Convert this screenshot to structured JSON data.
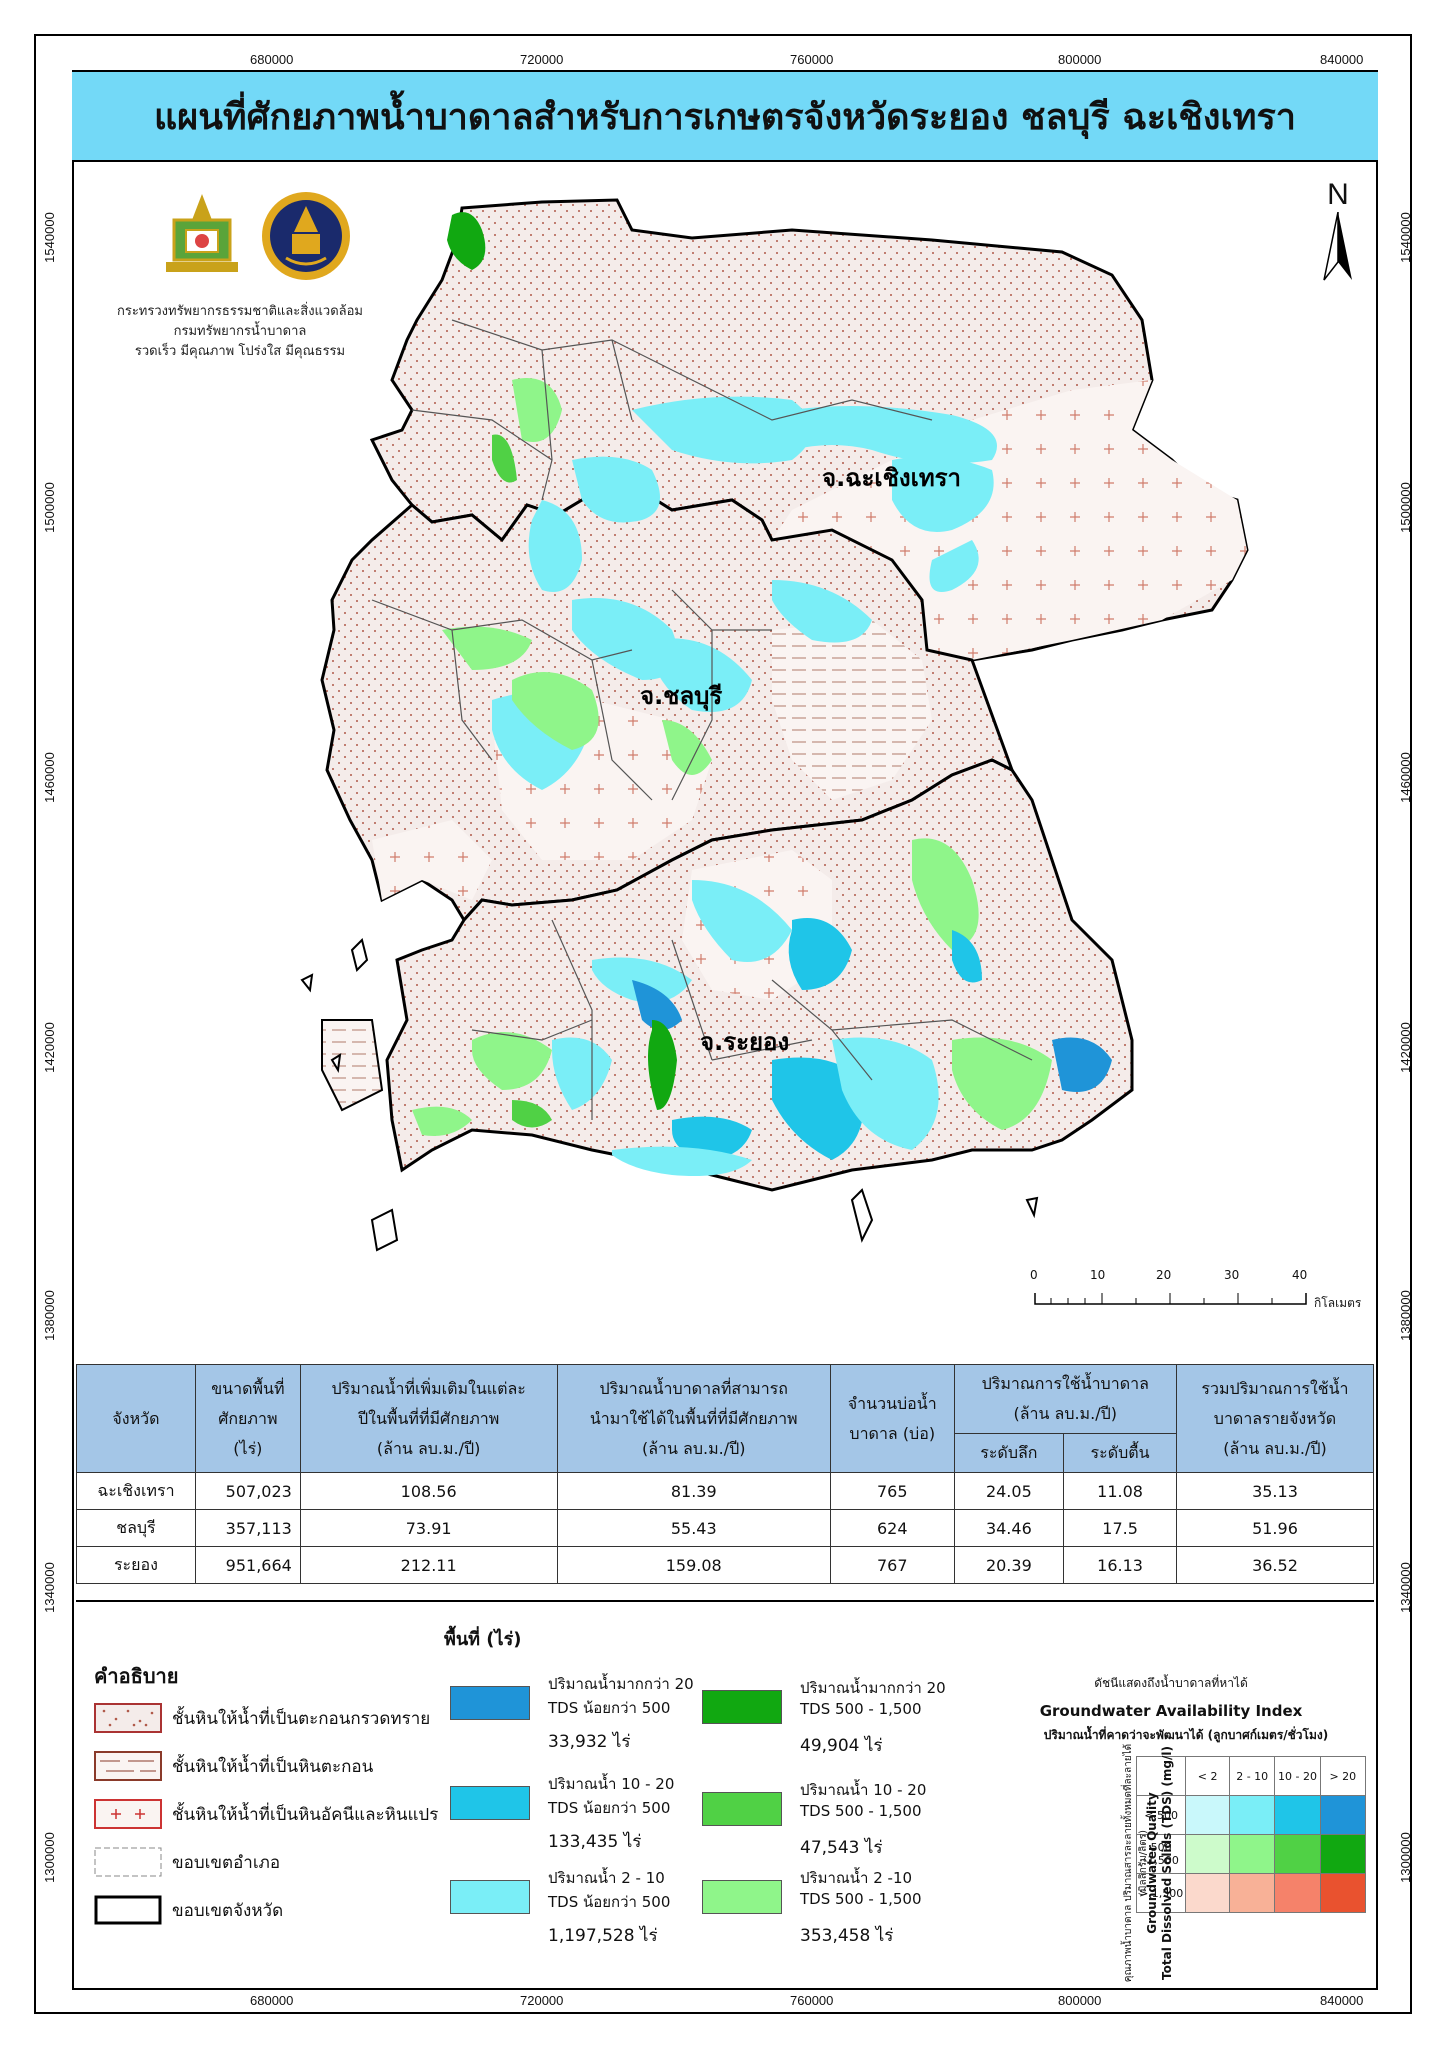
{
  "title": "แผนที่ศักยภาพน้ำบาดาลสำหรับการเกษตรจังหวัดระยอง ชลบุรี ฉะเชิงเทรา",
  "agency": {
    "line1": "กระทรวงทรัพยากรธรรมชาติและสิ่งแวดล้อม",
    "line2": "กรมทรัพยากรน้ำบาดาล",
    "line3": "รวดเร็ว มีคุณภาพ โปร่งใส มีคุณธรรม"
  },
  "grid": {
    "x_ticks": [
      "680000",
      "720000",
      "760000",
      "800000",
      "840000"
    ],
    "y_ticks": [
      "1540000",
      "1500000",
      "1460000",
      "1420000",
      "1380000",
      "1340000",
      "1300000"
    ]
  },
  "province_labels": {
    "chachoengsao": "จ.ฉะเชิงเทรา",
    "chonburi": "จ.ชลบุรี",
    "rayong": "จ.ระยอง"
  },
  "north_label": "N",
  "scale": {
    "ticks": [
      "0",
      "10",
      "20",
      "30",
      "40"
    ],
    "unit": "กิโลเมตร"
  },
  "colors": {
    "title_bar": "#73d9f7",
    "land": "#f4ecea",
    "dark_blue": "#1f94d8",
    "mid_blue": "#1fc5e8",
    "light_blue": "#7aeef7",
    "dark_green": "#11a811",
    "mid_green": "#50d145",
    "light_green": "#8ff58a"
  },
  "table": {
    "headers": {
      "province": "จังหวัด",
      "area_l1": "ขนาดพื้นที่",
      "area_l2": "ศักยภาพ",
      "area_l3": "(ไร่)",
      "recharge_l1": "ปริมาณน้ำที่เพิ่มเติมในแต่ละ",
      "recharge_l2": "ปีในพื้นที่ที่มีศักยภาพ",
      "recharge_l3": "(ล้าน ลบ.ม./ปี)",
      "usable_l1": "ปริมาณน้ำบาดาลที่สามารถ",
      "usable_l2": "นำมาใช้ได้ในพื้นที่ที่มีศักยภาพ",
      "usable_l3": "(ล้าน ลบ.ม./ปี)",
      "wells_l1": "จำนวนบ่อน้ำ",
      "wells_l2": "บาดาล (บ่อ)",
      "usage_l1": "ปริมาณการใช้น้ำบาดาล",
      "usage_l2": "(ล้าน ลบ.ม./ปี)",
      "deep": "ระดับลึก",
      "shallow": "ระดับตื้น",
      "total_l1": "รวมปริมาณการใช้น้ำ",
      "total_l2": "บาดาลรายจังหวัด",
      "total_l3": "(ล้าน ลบ.ม./ปี)"
    },
    "rows": [
      {
        "province": "ฉะเชิงเทรา",
        "area": "507,023",
        "recharge": "108.56",
        "usable": "81.39",
        "wells": "765",
        "deep": "24.05",
        "shallow": "11.08",
        "total": "35.13"
      },
      {
        "province": "ชลบุรี",
        "area": "357,113",
        "recharge": "73.91",
        "usable": "55.43",
        "wells": "624",
        "deep": "34.46",
        "shallow": "17.5",
        "total": "51.96"
      },
      {
        "province": "ระยอง",
        "area": "951,664",
        "recharge": "212.11",
        "usable": "159.08",
        "wells": "767",
        "deep": "20.39",
        "shallow": "16.13",
        "total": "36.52"
      }
    ]
  },
  "legend": {
    "heading": "คำอธิบาย",
    "items": [
      {
        "label": "ชั้นหินให้น้ำที่เป็นตะกอนกรวดทราย"
      },
      {
        "label": "ชั้นหินให้น้ำที่เป็นหินตะกอน"
      },
      {
        "label": "ชั้นหินให้น้ำที่เป็นหินอัคนีและหินแปร"
      },
      {
        "label": "ขอบเขตอำเภอ"
      },
      {
        "label": "ขอบเขตจังหวัด"
      }
    ],
    "area_heading": "พื้นที่ (ไร่)",
    "classes": [
      {
        "line1": "ปริมาณน้ำมากกว่า 20",
        "line2": "TDS น้อยกว่า 500",
        "area": "33,932 ไร่",
        "color": "#1f94d8"
      },
      {
        "line1": "ปริมาณน้ำ 10 - 20",
        "line2": "TDS น้อยกว่า 500",
        "area": "133,435 ไร่",
        "color": "#1fc5e8"
      },
      {
        "line1": "ปริมาณน้ำ 2 - 10",
        "line2": "TDS น้อยกว่า 500",
        "area": "1,197,528 ไร่",
        "color": "#7aeef7"
      },
      {
        "line1": "ปริมาณน้ำมากกว่า 20",
        "line2": "TDS 500 - 1,500",
        "area": "49,904 ไร่",
        "color": "#11a811"
      },
      {
        "line1": "ปริมาณน้ำ 10 - 20",
        "line2": "TDS 500 - 1,500",
        "area": "47,543 ไร่",
        "color": "#50d145"
      },
      {
        "line1": "ปริมาณน้ำ 2 -10",
        "line2": "TDS 500 - 1,500",
        "area": "353,458 ไร่",
        "color": "#8ff58a"
      }
    ]
  },
  "index_chart": {
    "small_title": "ดัชนีแสดงถึงน้ำบาดาลที่หาได้",
    "title": "Groundwater Availability Index",
    "subtitle": "ปริมาณน้ำที่คาดว่าจะพัฒนาได้ (ลูกบาศก์เมตร/ชั่วโมง)",
    "y_title_thai": "คุณภาพน้ำบาดาล ปริมาณสารละลายทั้งหมดที่ละลายได้ (มิลลิกรัม/ลิตร)",
    "y_title_en1": "Groundwater Quality",
    "y_title_en2": "Total Dissolved Solids (TDS) (mg/l)",
    "col_labels": [
      "< 2",
      "2 - 10",
      "10 - 20",
      "> 20"
    ],
    "rows": [
      {
        "label": "< 500",
        "colors": [
          "#c9f8fb",
          "#7aeef7",
          "#1fc5e8",
          "#1f94d8"
        ]
      },
      {
        "label": "500 -1,500",
        "colors": [
          "#cdfbcb",
          "#8ff58a",
          "#50d145",
          "#11a811"
        ]
      },
      {
        "label": "> 1,500",
        "colors": [
          "#fbd9cc",
          "#f8b197",
          "#f5826a",
          "#e9522f"
        ]
      }
    ]
  }
}
